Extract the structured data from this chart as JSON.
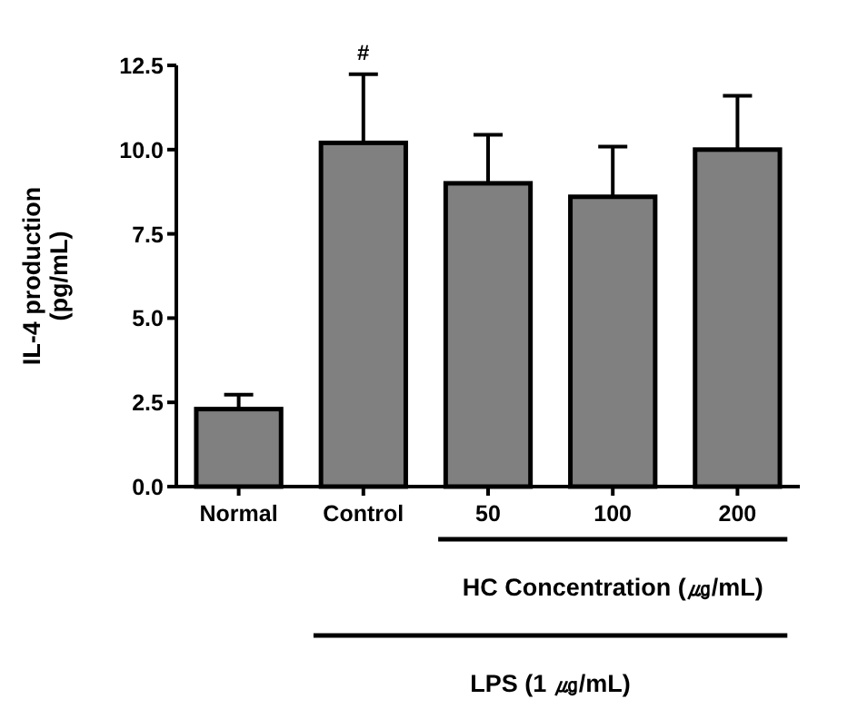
{
  "chart_data": {
    "type": "bar",
    "ylabel": "IL-4  production\n(pg/mL)",
    "categories": [
      "Normal",
      "Control",
      "50",
      "100",
      "200"
    ],
    "values": [
      2.3,
      10.2,
      9.0,
      8.6,
      10.0
    ],
    "errors": [
      [
        2.3,
        2.73
      ],
      [
        10.2,
        12.24
      ],
      [
        9.0,
        10.44
      ],
      [
        8.6,
        10.09
      ],
      [
        10.0,
        11.6
      ]
    ],
    "color": "#808080",
    "ylim": [
      0,
      12.5
    ],
    "yticks": [
      {
        "value": 0,
        "label": "0.0"
      },
      {
        "value": 2.5,
        "label": "2.5"
      },
      {
        "value": 5,
        "label": "5.0"
      },
      {
        "value": 7.5,
        "label": "7.5"
      },
      {
        "value": 10,
        "label": "10.0"
      },
      {
        "value": 12.5,
        "label": "12.5"
      }
    ],
    "annotations": [
      {
        "text": "#",
        "x": "Control",
        "y": 12.24
      },
      "HC Concentration (㎍/mL)",
      "LPS (1 ㎍/mL)"
    ]
  }
}
